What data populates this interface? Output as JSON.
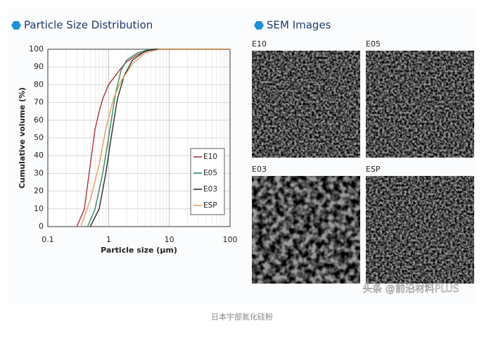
{
  "chart_data": {
    "type": "line",
    "title": "Particle Size Distribution",
    "x_label": "Particle size (μm)",
    "y_label": "Cumulative volume (%)",
    "xlim": [
      0.1,
      100
    ],
    "xticks": [
      0.1,
      1,
      10,
      100
    ],
    "log_x": true,
    "ylim": [
      0,
      100
    ],
    "yticks": [
      0,
      10,
      20,
      30,
      40,
      50,
      60,
      70,
      80,
      90,
      100
    ],
    "grid": true,
    "legend": "lower right",
    "series": [
      {
        "name": "E10",
        "color": "#b0323a",
        "x": [
          0.3,
          0.4,
          0.5,
          0.6,
          0.7,
          0.8,
          1,
          1.5,
          2,
          3,
          5,
          100
        ],
        "values": [
          0,
          10,
          35,
          55,
          65,
          72,
          80,
          88,
          93,
          97,
          100,
          100
        ]
      },
      {
        "name": "E05",
        "color": "#2e8b57",
        "x": [
          0.45,
          0.6,
          0.8,
          1,
          1.3,
          1.6,
          2,
          3,
          5,
          100
        ],
        "values": [
          0,
          10,
          30,
          50,
          75,
          88,
          94,
          98,
          100,
          100
        ]
      },
      {
        "name": "E03",
        "color": "#2a2a2a",
        "x": [
          0.5,
          0.7,
          0.9,
          1.1,
          1.4,
          1.8,
          2.5,
          4,
          6,
          100
        ],
        "values": [
          0,
          10,
          30,
          50,
          72,
          85,
          94,
          99,
          100,
          100
        ]
      },
      {
        "name": "ESP",
        "color": "#e0a060",
        "x": [
          0.35,
          0.5,
          0.7,
          0.9,
          1.2,
          1.6,
          2.5,
          4,
          7,
          100
        ],
        "values": [
          0,
          15,
          35,
          55,
          72,
          82,
          92,
          98,
          100,
          100
        ]
      }
    ]
  },
  "sem": {
    "title": "SEM Images",
    "images": [
      "E10",
      "E05",
      "E03",
      "ESP"
    ]
  },
  "watermark": "头条 @前沿材料PLUS",
  "caption": "日本宇部氮化硅粉"
}
